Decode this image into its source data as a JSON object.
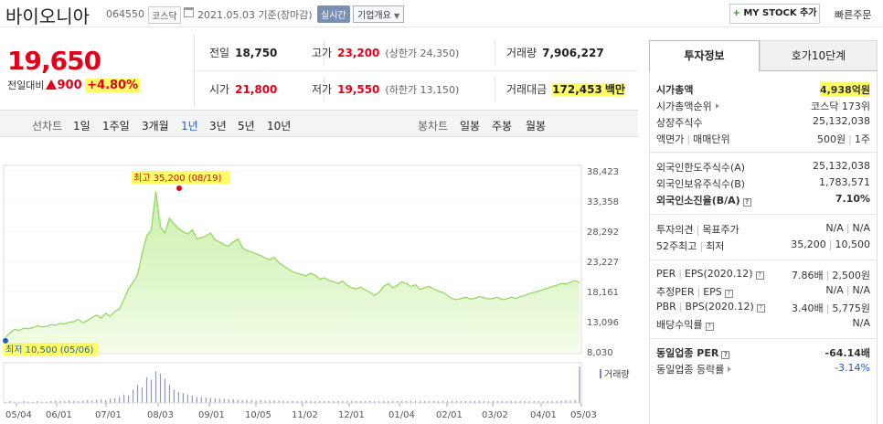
{
  "header": {
    "stock_name": "바이오니아",
    "stock_code": "064550",
    "market": "코스닥",
    "date": "2021.05.03",
    "date_suffix": "기준(장마감)",
    "realtime": "실시간",
    "corp_overview": "기업개요",
    "mystock_plus": "+",
    "mystock_label": "MY STOCK 추가",
    "quick_order": "빠른주문"
  },
  "price": {
    "current": "19,650",
    "change_label": "전일대비",
    "change_value": "900",
    "change_pct": "+4.80%"
  },
  "quote": {
    "prev_label": "전일",
    "prev_value": "18,750",
    "high_label": "고가",
    "high_value": "23,200",
    "upper_limit": "(상한가 24,350)",
    "volume_label": "거래량",
    "volume_value": "7,906,227",
    "open_label": "시가",
    "open_value": "21,800",
    "low_label": "저가",
    "low_value": "19,550",
    "lower_limit": "(하한가 13,150)",
    "amount_label": "거래대금",
    "amount_value": "172,453",
    "amount_unit": "백만"
  },
  "tabs": {
    "line_chart": "선차트",
    "periods": [
      "1일",
      "1주일",
      "3개월",
      "1년",
      "3년",
      "5년",
      "10년"
    ],
    "active_period": "1년",
    "candle_chart": "봉차트",
    "candle_periods": [
      "일봉",
      "주봉",
      "월봉"
    ]
  },
  "chart_data": {
    "type": "area",
    "y_ticks": [
      "38,423",
      "33,358",
      "28,292",
      "23,227",
      "18,161",
      "13,096",
      "8,030"
    ],
    "ylim": [
      8030,
      38423
    ],
    "x_ticks": [
      "05/04",
      "06/01",
      "07/01",
      "08/03",
      "09/01",
      "10/05",
      "11/02",
      "12/01",
      "01/04",
      "02/01",
      "03/02",
      "04/01",
      "05/03"
    ],
    "max_label": "최고 35,200 (08/19)",
    "min_label": "최저 10,500 (05/06)",
    "volume_label": "거래량",
    "grid": true,
    "series": [
      {
        "values": [
          10500,
          11200,
          11800,
          11600,
          12000,
          11900,
          12100,
          12400,
          12200,
          12300,
          12600,
          12500,
          12800,
          12700,
          13000,
          13100,
          13500,
          12900,
          13300,
          13800,
          14200,
          13700,
          14500,
          14000,
          14800,
          15200,
          16800,
          18600,
          19700,
          21000,
          24500,
          27500,
          28500,
          35000,
          29000,
          28000,
          30500,
          29500,
          28700,
          28200,
          27800,
          28500,
          27000,
          27200,
          27500,
          28000,
          26800,
          26500,
          26000,
          25800,
          26500,
          27000,
          25500,
          25000,
          24800,
          24500,
          24200,
          23800,
          23500,
          23900,
          23000,
          22500,
          22000,
          21500,
          21200,
          21000,
          20800,
          21200,
          20900,
          20200,
          20500,
          20000,
          19800,
          19500,
          19900,
          19200,
          18800,
          18600,
          18900,
          18400,
          18000,
          17500,
          18000,
          19000,
          19500,
          18800,
          19200,
          19800,
          19500,
          19000,
          19300,
          18500,
          18800,
          19000,
          18600,
          18200,
          18000,
          17500,
          17000,
          16800,
          17000,
          17200,
          16900,
          17000,
          17300,
          17100,
          16900,
          17000,
          17200,
          16800,
          16900,
          17200,
          17000,
          17300,
          17500,
          17800,
          18000,
          18200,
          18500,
          18700,
          19000,
          19200,
          19500,
          19400,
          19700,
          20000,
          19650
        ],
        "volumes": [
          2,
          3,
          2,
          2,
          3,
          2,
          2,
          3,
          2,
          2,
          3,
          4,
          3,
          3,
          4,
          3,
          3,
          4,
          5,
          4,
          5,
          6,
          5,
          7,
          8,
          10,
          14,
          12,
          22,
          30,
          26,
          42,
          38,
          52,
          48,
          40,
          30,
          22,
          18,
          16,
          14,
          12,
          10,
          10,
          9,
          8,
          8,
          7,
          7,
          6,
          6,
          5,
          5,
          5,
          5,
          4,
          5,
          4,
          4,
          4,
          4,
          4,
          3,
          3,
          3,
          3,
          4,
          3,
          3,
          3,
          3,
          3,
          3,
          3,
          3,
          3,
          3,
          3,
          3,
          3,
          3,
          3,
          3,
          3,
          3,
          3,
          3,
          3,
          3,
          3,
          3,
          3,
          3,
          3,
          3,
          3,
          3,
          3,
          3,
          3,
          3,
          3,
          3,
          3,
          3,
          3,
          3,
          3,
          3,
          3,
          3,
          3,
          3,
          3,
          3,
          3,
          3,
          3,
          3,
          3,
          3,
          3,
          4,
          4,
          4,
          5,
          60
        ]
      }
    ]
  },
  "invest": {
    "tab_info": "투자정보",
    "tab_quote": "호가10단계",
    "market_cap_label": "시가총액",
    "market_cap_value": "4,938억원",
    "market_cap_rank_label": "시가총액순위",
    "market_cap_rank_value": "코스닥 173위",
    "shares_label": "상장주식수",
    "shares_value": "25,132,038",
    "par_label": "액면가",
    "unit_label": "매매단위",
    "par_value": "500원",
    "unit_value": "1주",
    "foreign_limit_label": "외국인한도주식수(A)",
    "foreign_limit_value": "25,132,038",
    "foreign_hold_label": "외국인보유주식수(B)",
    "foreign_hold_value": "1,783,571",
    "foreign_ratio_label": "외국인소진율(B/A)",
    "foreign_ratio_value": "7.10%",
    "opinion_label": "투자의견",
    "target_label": "목표주가",
    "opinion_value": "N/A",
    "target_value": "N/A",
    "week52_label": "52주최고",
    "week52_low_label": "최저",
    "week52_high_value": "35,200",
    "week52_low_value": "10,500",
    "per_label": "PER",
    "eps_label": "EPS(2020.12)",
    "per_value": "7.86배",
    "eps_value": "2,500원",
    "est_per_label": "추정PER",
    "est_eps_label": "EPS",
    "est_per_value": "N/A",
    "est_eps_value": "N/A",
    "pbr_label": "PBR",
    "bps_label": "BPS(2020.12)",
    "pbr_value": "3.40배",
    "bps_value": "5,775원",
    "dividend_label": "배당수익률",
    "dividend_value": "N/A",
    "sector_per_label": "동일업종 PER",
    "sector_per_value": "-64.14배",
    "sector_rate_label": "동일업종 등락률",
    "sector_rate_value": "-3.14%",
    "info_glyph": "?"
  }
}
